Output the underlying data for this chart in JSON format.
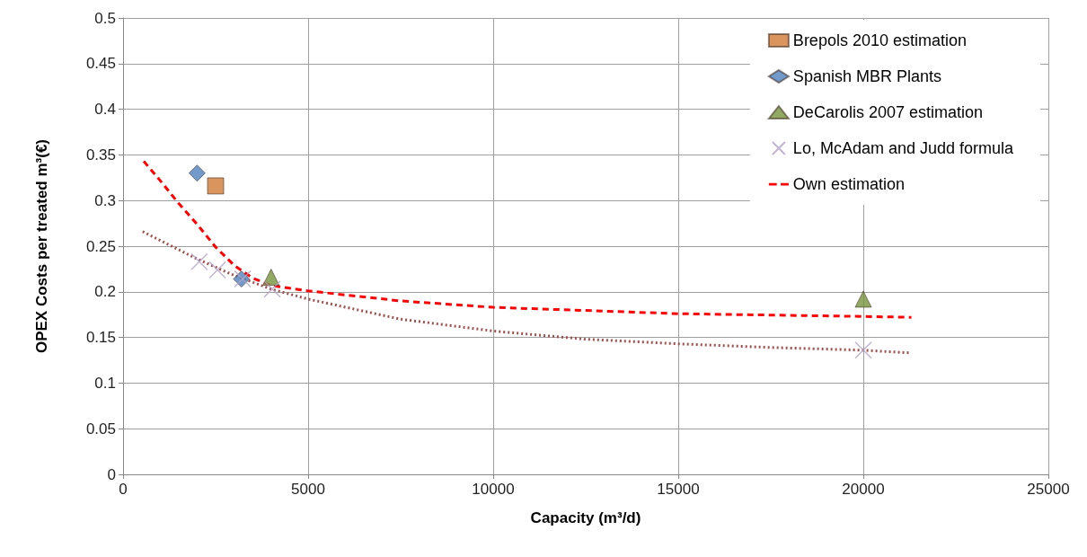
{
  "chart_data": {
    "type": "scatter",
    "xlabel": "Capacity (m³/d)",
    "ylabel": "OPEX Costs per treated m³(€)",
    "xlim": [
      0,
      25000
    ],
    "xticks": [
      0,
      5000,
      10000,
      15000,
      20000,
      25000
    ],
    "ylim": [
      0,
      0.5
    ],
    "yticks": [
      0,
      0.05,
      0.1,
      0.15,
      0.2,
      0.25,
      0.3,
      0.35,
      0.4,
      0.45,
      0.5
    ],
    "grid": true,
    "legend": "top right",
    "series": [
      {
        "name": "Brepols 2010 estimation",
        "marker": "square",
        "color": "#d07a35",
        "x": [
          2500
        ],
        "values": [
          0.316
        ]
      },
      {
        "name": "Spanish MBR Plants",
        "marker": "diamond",
        "color": "#4f81bd",
        "x": [
          2000,
          3200
        ],
        "values": [
          0.33,
          0.214
        ]
      },
      {
        "name": "DeCarolis 2007 estimation",
        "marker": "triangle",
        "color": "#77933c",
        "x": [
          4000,
          20000
        ],
        "values": [
          0.216,
          0.192
        ]
      },
      {
        "name": "Lo, McAdam and Judd formula",
        "marker": "cross",
        "color": "#b3a2c7",
        "x": [
          2060,
          2550,
          3230,
          4030,
          20000
        ],
        "values": [
          0.233,
          0.224,
          0.214,
          0.203,
          0.136
        ]
      },
      {
        "type": "line",
        "marker": "none",
        "line_style": "dotted",
        "color": "#a0504f",
        "x": [
          530,
          2000,
          3000,
          4000,
          5000,
          7500,
          10000,
          12500,
          15000,
          17500,
          20000,
          21300
        ],
        "values": [
          0.266,
          0.236,
          0.218,
          0.203,
          0.192,
          0.17,
          0.157,
          0.148,
          0.143,
          0.139,
          0.136,
          0.133
        ]
      },
      {
        "name": "Own estimation",
        "type": "line",
        "marker": "none",
        "line_style": "dashed",
        "color": "#ff0000",
        "x": [
          560,
          1000,
          1500,
          2000,
          2500,
          3000,
          3500,
          4000,
          5000,
          7500,
          10000,
          15000,
          20000,
          21300
        ],
        "values": [
          0.343,
          0.322,
          0.297,
          0.274,
          0.249,
          0.229,
          0.215,
          0.207,
          0.201,
          0.19,
          0.183,
          0.176,
          0.173,
          0.172
        ]
      }
    ]
  }
}
